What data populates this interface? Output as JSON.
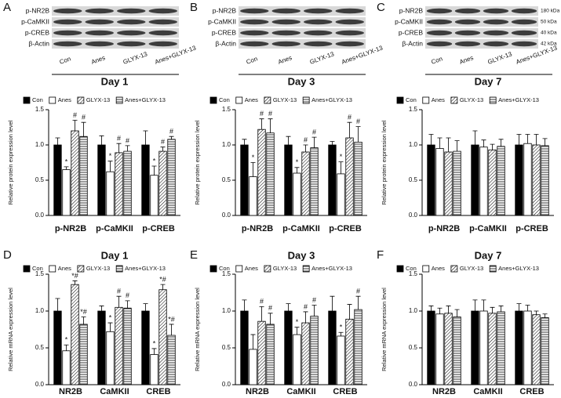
{
  "chart_data": [
    {
      "type": "bar",
      "panel": "A",
      "title": "Day 1",
      "ylabel": "Relative protein expression level",
      "blot_labels": [
        "p-NR2B",
        "p-CaMKII",
        "p-CREB",
        "β-Actin"
      ],
      "lane_labels": [
        "Con",
        "Anes",
        "GLYX-13",
        "Anes+GLYX-13"
      ],
      "categories": [
        "p-NR2B",
        "p-CaMKII",
        "p-CREB"
      ],
      "series": [
        {
          "name": "Con",
          "color": "#000000",
          "pattern": "solid",
          "values": [
            1.0,
            1.0,
            1.0
          ],
          "errors": [
            0.1,
            0.13,
            0.2
          ],
          "annotations": [
            null,
            null,
            null
          ]
        },
        {
          "name": "Anes",
          "color": "#000000",
          "pattern": "none",
          "values": [
            0.65,
            0.62,
            0.57
          ],
          "errors": [
            0.04,
            0.15,
            0.13
          ],
          "annotations": [
            "*",
            "*",
            "*"
          ]
        },
        {
          "name": "GLYX-13",
          "color": "#000000",
          "pattern": "diagonal",
          "values": [
            1.2,
            0.89,
            0.91
          ],
          "errors": [
            0.15,
            0.13,
            0.06
          ],
          "annotations": [
            "#",
            "#",
            "#"
          ]
        },
        {
          "name": "Anes+GLYX-13",
          "color": "#000000",
          "pattern": "horizontal",
          "values": [
            1.12,
            0.91,
            1.08
          ],
          "errors": [
            0.2,
            0.08,
            0.04
          ],
          "annotations": [
            "#",
            "#",
            "#"
          ]
        }
      ],
      "ylim": [
        0,
        1.5
      ],
      "yticks": [
        {
          "value": 0,
          "label": "0.0"
        },
        {
          "value": 0.5,
          "label": "0.5"
        },
        {
          "value": 1,
          "label": "1.0"
        },
        {
          "value": 1.5,
          "label": "1.5"
        }
      ]
    },
    {
      "type": "bar",
      "panel": "B",
      "title": "Day 3",
      "ylabel": "Relative protein expression level",
      "blot_labels": [
        "p-NR2B",
        "p-CaMKII",
        "p-CREB",
        "β-Actin"
      ],
      "lane_labels": [
        "Con",
        "Anes",
        "GLYX-13",
        "Anes+GLYX-13"
      ],
      "categories": [
        "p-NR2B",
        "p-CaMKII",
        "p-CREB"
      ],
      "series": [
        {
          "name": "Con",
          "color": "#000000",
          "pattern": "solid",
          "values": [
            1.0,
            1.0,
            1.0
          ],
          "errors": [
            0.08,
            0.12,
            0.05
          ],
          "annotations": [
            null,
            null,
            null
          ]
        },
        {
          "name": "Anes",
          "color": "#000000",
          "pattern": "none",
          "values": [
            0.55,
            0.6,
            0.59
          ],
          "errors": [
            0.2,
            0.08,
            0.17
          ],
          "annotations": [
            "*",
            "*",
            "*"
          ]
        },
        {
          "name": "GLYX-13",
          "color": "#000000",
          "pattern": "diagonal",
          "values": [
            1.22,
            0.9,
            1.1
          ],
          "errors": [
            0.15,
            0.1,
            0.22
          ],
          "annotations": [
            "#",
            "#",
            "#"
          ]
        },
        {
          "name": "Anes+GLYX-13",
          "color": "#000000",
          "pattern": "horizontal",
          "values": [
            1.17,
            0.96,
            1.04
          ],
          "errors": [
            0.2,
            0.15,
            0.22
          ],
          "annotations": [
            "#",
            "#",
            "#"
          ]
        }
      ],
      "ylim": [
        0,
        1.5
      ],
      "yticks": [
        {
          "value": 0,
          "label": "0.0"
        },
        {
          "value": 0.5,
          "label": "0.5"
        },
        {
          "value": 1,
          "label": "1.0"
        },
        {
          "value": 1.5,
          "label": "1.5"
        }
      ]
    },
    {
      "type": "bar",
      "panel": "C",
      "title": "Day 7",
      "ylabel": "Relative protein expression level",
      "blot_labels": [
        "p-NR2B",
        "p-CaMKII",
        "p-CREB",
        "β-Actin"
      ],
      "blot_sizes": [
        "180 kDa",
        "50 kDa",
        "40 kDa",
        "42 kDa"
      ],
      "lane_labels": [
        "Con",
        "Anes",
        "GLYX-13",
        "Anes+GLYX-13"
      ],
      "categories": [
        "p-NR2B",
        "p-CaMKII",
        "p-CREB"
      ],
      "series": [
        {
          "name": "Con",
          "color": "#000000",
          "pattern": "solid",
          "values": [
            1.0,
            1.0,
            1.0
          ],
          "errors": [
            0.15,
            0.2,
            0.15
          ],
          "annotations": [
            null,
            null,
            null
          ]
        },
        {
          "name": "Anes",
          "color": "#000000",
          "pattern": "none",
          "values": [
            0.95,
            0.97,
            1.02
          ],
          "errors": [
            0.15,
            0.1,
            0.13
          ],
          "annotations": [
            null,
            null,
            null
          ]
        },
        {
          "name": "GLYX-13",
          "color": "#000000",
          "pattern": "diagonal",
          "values": [
            0.9,
            0.93,
            1.0
          ],
          "errors": [
            0.2,
            0.08,
            0.15
          ],
          "annotations": [
            null,
            null,
            null
          ]
        },
        {
          "name": "Anes+GLYX-13",
          "color": "#000000",
          "pattern": "horizontal",
          "values": [
            0.91,
            0.98,
            0.99
          ],
          "errors": [
            0.15,
            0.1,
            0.1
          ],
          "annotations": [
            null,
            null,
            null
          ]
        }
      ],
      "ylim": [
        0,
        1.5
      ],
      "yticks": [
        {
          "value": 0,
          "label": "0.0"
        },
        {
          "value": 0.5,
          "label": "0.5"
        },
        {
          "value": 1,
          "label": "1.0"
        },
        {
          "value": 1.5,
          "label": "1.5"
        }
      ]
    },
    {
      "type": "bar",
      "panel": "D",
      "title": "Day 1",
      "ylabel": "Relative  mRNA expression  level",
      "categories": [
        "NR2B",
        "CaMKII",
        "CREB"
      ],
      "series": [
        {
          "name": "Con",
          "color": "#000000",
          "pattern": "solid",
          "values": [
            1.0,
            1.0,
            1.0
          ],
          "errors": [
            0.17,
            0.07,
            0.1
          ],
          "annotations": [
            null,
            null,
            null
          ]
        },
        {
          "name": "Anes",
          "color": "#000000",
          "pattern": "none",
          "values": [
            0.46,
            0.72,
            0.41
          ],
          "errors": [
            0.08,
            0.12,
            0.08
          ],
          "annotations": [
            "*",
            "*",
            "*"
          ]
        },
        {
          "name": "GLYX-13",
          "color": "#000000",
          "pattern": "diagonal",
          "values": [
            1.36,
            1.05,
            1.29
          ],
          "errors": [
            0.05,
            0.15,
            0.07
          ],
          "annotations": [
            "*#",
            "#",
            "*#"
          ]
        },
        {
          "name": "Anes+GLYX-13",
          "color": "#000000",
          "pattern": "horizontal",
          "values": [
            0.82,
            1.04,
            0.67
          ],
          "errors": [
            0.1,
            0.1,
            0.15
          ],
          "annotations": [
            "*#",
            "#",
            "*#"
          ]
        }
      ],
      "ylim": [
        0,
        1.5
      ],
      "yticks": [
        {
          "value": 0,
          "label": "0.0"
        },
        {
          "value": 0.5,
          "label": "0.5"
        },
        {
          "value": 1,
          "label": "1.0"
        },
        {
          "value": 1.5,
          "label": "1.5"
        }
      ]
    },
    {
      "type": "bar",
      "panel": "E",
      "title": "Day 3",
      "ylabel": "Relative  mRNA expression  level",
      "categories": [
        "NR2B",
        "CaMKII",
        "CREB"
      ],
      "series": [
        {
          "name": "Con",
          "color": "#000000",
          "pattern": "solid",
          "values": [
            1.0,
            1.0,
            1.0
          ],
          "errors": [
            0.15,
            0.1,
            0.2
          ],
          "annotations": [
            null,
            null,
            null
          ]
        },
        {
          "name": "Anes",
          "color": "#000000",
          "pattern": "none",
          "values": [
            0.48,
            0.68,
            0.66
          ],
          "errors": [
            0.2,
            0.1,
            0.05
          ],
          "annotations": [
            null,
            "*",
            "*"
          ]
        },
        {
          "name": "GLYX-13",
          "color": "#000000",
          "pattern": "diagonal",
          "values": [
            0.86,
            0.84,
            0.89
          ],
          "errors": [
            0.2,
            0.15,
            0.2
          ],
          "annotations": [
            "#",
            "#",
            null
          ]
        },
        {
          "name": "Anes+GLYX-13",
          "color": "#000000",
          "pattern": "horizontal",
          "values": [
            0.82,
            0.93,
            1.02
          ],
          "errors": [
            0.15,
            0.15,
            0.18
          ],
          "annotations": [
            "#",
            "#",
            "#"
          ]
        }
      ],
      "ylim": [
        0,
        1.5
      ],
      "yticks": [
        {
          "value": 0,
          "label": "0.0"
        },
        {
          "value": 0.5,
          "label": "0.5"
        },
        {
          "value": 1,
          "label": "1.0"
        },
        {
          "value": 1.5,
          "label": "1.5"
        }
      ]
    },
    {
      "type": "bar",
      "panel": "F",
      "title": "Day 7",
      "ylabel": "Relative  mRNA expression  level",
      "categories": [
        "NR2B",
        "CaMKII",
        "CREB"
      ],
      "series": [
        {
          "name": "Con",
          "color": "#000000",
          "pattern": "solid",
          "values": [
            1.0,
            1.0,
            1.0
          ],
          "errors": [
            0.07,
            0.15,
            0.1
          ],
          "annotations": [
            null,
            null,
            null
          ]
        },
        {
          "name": "Anes",
          "color": "#000000",
          "pattern": "none",
          "values": [
            0.96,
            1.0,
            1.0
          ],
          "errors": [
            0.08,
            0.15,
            0.08
          ],
          "annotations": [
            null,
            null,
            null
          ]
        },
        {
          "name": "GLYX-13",
          "color": "#000000",
          "pattern": "diagonal",
          "values": [
            0.97,
            0.97,
            0.95
          ],
          "errors": [
            0.1,
            0.08,
            0.05
          ],
          "annotations": [
            null,
            null,
            null
          ]
        },
        {
          "name": "Anes+GLYX-13",
          "color": "#000000",
          "pattern": "horizontal",
          "values": [
            0.92,
            0.99,
            0.91
          ],
          "errors": [
            0.1,
            0.08,
            0.05
          ],
          "annotations": [
            null,
            null,
            null
          ]
        }
      ],
      "ylim": [
        0,
        1.5
      ],
      "yticks": [
        {
          "value": 0,
          "label": "0.0"
        },
        {
          "value": 0.5,
          "label": "0.5"
        },
        {
          "value": 1,
          "label": "1.0"
        },
        {
          "value": 1.5,
          "label": "1.5"
        }
      ]
    }
  ]
}
